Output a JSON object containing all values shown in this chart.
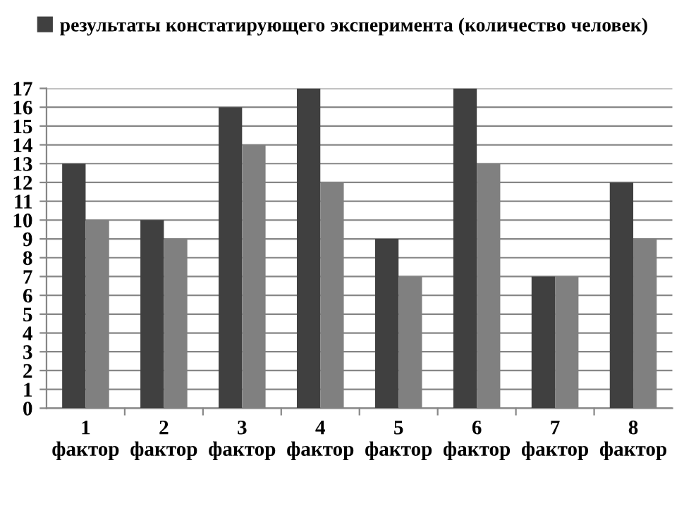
{
  "chart_data": {
    "type": "bar",
    "categories": [
      "1\nфактор",
      "2\nфактор",
      "3\nфактор",
      "4\nфактор",
      "5\nфактор",
      "6\nфактор",
      "7\nфактор",
      "8\nфактор"
    ],
    "series": [
      {
        "name": "результаты констатирующего эксперимента (количество человек)",
        "color": "#404040",
        "values": [
          13,
          10,
          16,
          17,
          9,
          17,
          7,
          12
        ]
      },
      {
        "color": "#808080",
        "values": [
          10,
          9,
          14,
          12,
          7,
          13,
          7,
          9
        ]
      }
    ],
    "ylim": [
      0,
      17
    ],
    "yticks": [
      0,
      1,
      2,
      3,
      4,
      5,
      6,
      7,
      8,
      9,
      10,
      11,
      12,
      13,
      14,
      15,
      16,
      17
    ],
    "grid": "y",
    "legend": "top"
  }
}
